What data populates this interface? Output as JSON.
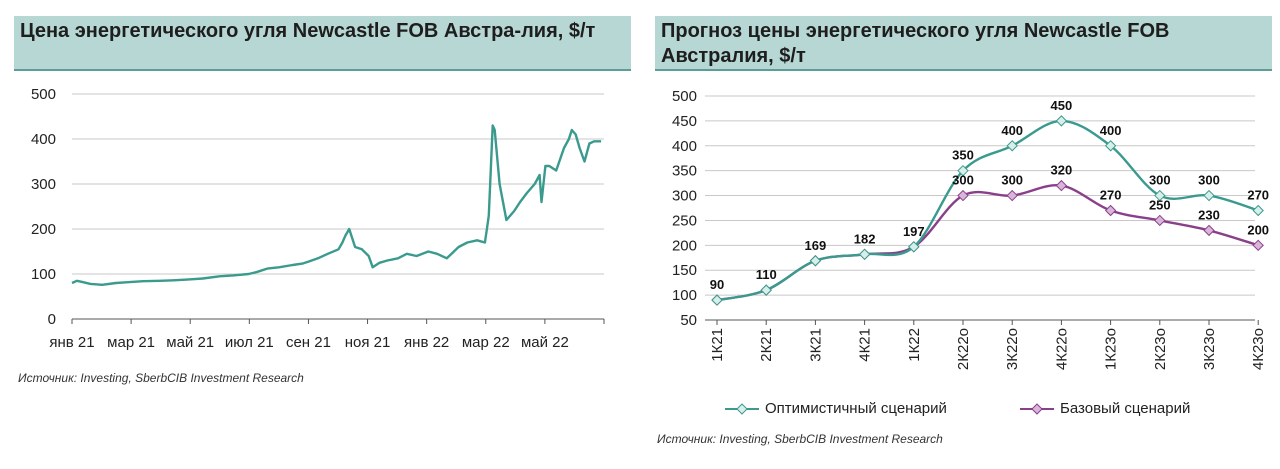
{
  "left": {
    "title": "Цена энергетического угля Newcastle FOB Австра-лия, $/т",
    "source": "Источник: Investing, SberbCIB Investment Research"
  },
  "right": {
    "title": "Прогноз цены энергетического угля Newcastle FOB Австралия, $/т",
    "source": "Источник: Investing, SberbCIB Investment Research"
  },
  "chart_data": [
    {
      "type": "line",
      "title": "Цена энергетического угля Newcastle FOB Австра-лия, $/т",
      "xlabel": "",
      "ylabel": "",
      "ylim": [
        0,
        500
      ],
      "yticks": [
        0,
        100,
        200,
        300,
        400,
        500
      ],
      "xtick_labels": [
        "янв 21",
        "мар 21",
        "май 21",
        "июл 21",
        "сен 21",
        "ноя 21",
        "янв 22",
        "мар 22",
        "май 22"
      ],
      "grid": true,
      "color": "#3a9a8e",
      "series": [
        {
          "x": [
            "2021-01-01",
            "2021-01-06",
            "2021-01-12",
            "2021-01-20",
            "2021-02-01",
            "2021-02-15",
            "2021-03-01",
            "2021-03-15",
            "2021-04-01",
            "2021-04-15",
            "2021-05-01",
            "2021-05-15",
            "2021-06-01",
            "2021-06-15",
            "2021-07-01",
            "2021-07-10",
            "2021-07-20",
            "2021-08-01",
            "2021-08-15",
            "2021-08-25",
            "2021-09-01",
            "2021-09-10",
            "2021-09-20",
            "2021-10-01",
            "2021-10-05",
            "2021-10-08",
            "2021-10-12",
            "2021-10-18",
            "2021-10-25",
            "2021-11-01",
            "2021-11-05",
            "2021-11-12",
            "2021-11-20",
            "2021-12-01",
            "2021-12-10",
            "2021-12-20",
            "2022-01-01",
            "2022-01-10",
            "2022-01-20",
            "2022-02-01",
            "2022-02-10",
            "2022-02-20",
            "2022-02-28",
            "2022-03-02",
            "2022-03-04",
            "2022-03-08",
            "2022-03-10",
            "2022-03-15",
            "2022-03-22",
            "2022-03-30",
            "2022-04-05",
            "2022-04-12",
            "2022-04-20",
            "2022-04-25",
            "2022-04-27",
            "2022-05-01",
            "2022-05-05",
            "2022-05-12",
            "2022-05-20",
            "2022-05-25",
            "2022-05-28",
            "2022-06-01",
            "2022-06-05",
            "2022-06-10",
            "2022-06-15",
            "2022-06-20",
            "2022-06-27"
          ],
          "y": [
            80,
            85,
            82,
            78,
            76,
            80,
            82,
            84,
            85,
            86,
            88,
            90,
            95,
            97,
            100,
            105,
            112,
            115,
            120,
            123,
            128,
            135,
            145,
            155,
            170,
            185,
            200,
            160,
            155,
            140,
            115,
            125,
            130,
            135,
            145,
            140,
            150,
            145,
            135,
            160,
            170,
            175,
            170,
            200,
            230,
            430,
            420,
            300,
            220,
            240,
            260,
            280,
            300,
            320,
            260,
            340,
            340,
            330,
            380,
            400,
            420,
            410,
            380,
            350,
            390,
            395,
            395
          ]
        }
      ]
    },
    {
      "type": "line",
      "title": "Прогноз цены энергетического угля Newcastle FOB Австралия, $/т",
      "xlabel": "",
      "ylabel": "",
      "ylim": [
        50,
        500
      ],
      "yticks": [
        50,
        100,
        150,
        200,
        250,
        300,
        350,
        400,
        450,
        500
      ],
      "categories": [
        "1К21",
        "2К21",
        "3К21",
        "4К21",
        "1К22",
        "2К22о",
        "3К22о",
        "4К22о",
        "1К23о",
        "2К23о",
        "3К23о",
        "4К23о"
      ],
      "grid": true,
      "legend": "bottom",
      "series": [
        {
          "name": "Оптимистичный сценарий",
          "color": "#3a9a8e",
          "values": [
            90,
            110,
            169,
            182,
            197,
            350,
            400,
            450,
            400,
            300,
            300,
            270
          ],
          "labels": [
            "90",
            "110",
            "169",
            "182",
            "197",
            "350",
            "400",
            "450",
            "400",
            "300",
            "300",
            "270"
          ]
        },
        {
          "name": "Базовый сценарий",
          "color": "#8a3f8a",
          "values": [
            90,
            110,
            169,
            182,
            197,
            300,
            300,
            320,
            270,
            250,
            230,
            200
          ],
          "labels": [
            "",
            "",
            "",
            "",
            "",
            "300",
            "300",
            "320",
            "270",
            "250",
            "230",
            "200"
          ]
        }
      ]
    }
  ]
}
